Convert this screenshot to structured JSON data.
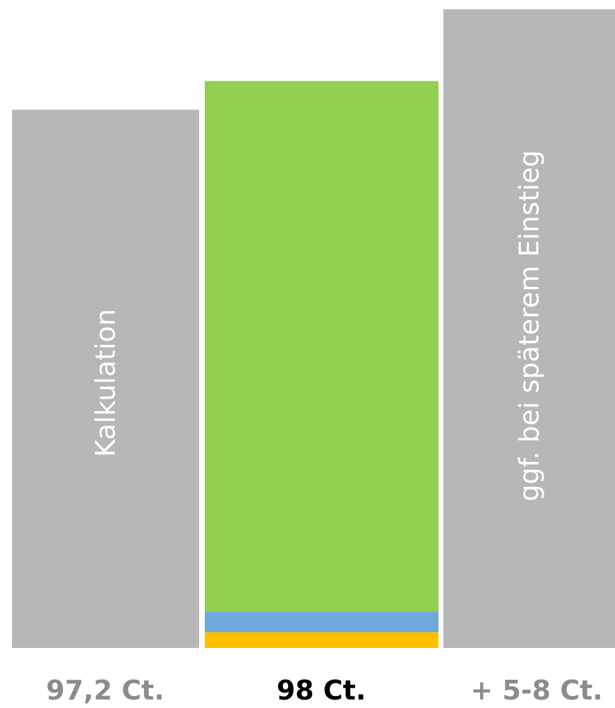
{
  "chart_data": {
    "type": "bar",
    "categories": [
      "97,2 Ct.",
      "98 Ct.",
      "+ 5-8 Ct."
    ],
    "bars": [
      {
        "inner_label": "Kalkulation",
        "value_label": "97,2 Ct.",
        "value": 75,
        "segments": [
          {
            "value": 75,
            "color": "#b7b7b7"
          }
        ]
      },
      {
        "inner_label": "",
        "value_label": "98 Ct.",
        "value": 79,
        "segments": [
          {
            "value": 2.2,
            "color": "#ffc000"
          },
          {
            "value": 2.9,
            "color": "#70a8dc"
          },
          {
            "value": 73.9,
            "color": "#92d050"
          }
        ]
      },
      {
        "inner_label": "ggf. bei späterem Einstieg",
        "value_label": "+ 5-8 Ct.",
        "value": 89,
        "segments": [
          {
            "value": 89,
            "color": "#b7b7b7"
          }
        ]
      }
    ],
    "ylim": [
      0,
      90
    ],
    "grid": false,
    "colors": {
      "label_muted": "#8c8c8c",
      "label_emphasis": "#000000"
    },
    "emphasized_index": 1
  }
}
